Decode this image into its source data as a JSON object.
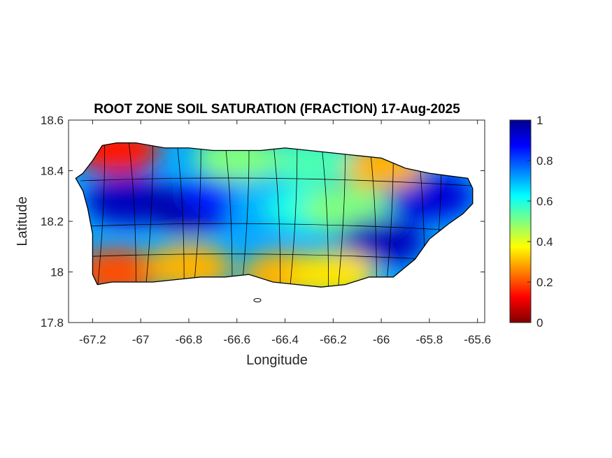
{
  "figure": {
    "title": "ROOT ZONE SOIL SATURATION (FRACTION) 17-Aug-2025",
    "xlabel": "Longitude",
    "ylabel": "Latitude"
  },
  "chart_data": {
    "type": "heatmap",
    "title": "ROOT ZONE SOIL SATURATION (FRACTION) 17-Aug-2025",
    "xlabel": "Longitude",
    "ylabel": "Latitude",
    "xlim": [
      -67.3,
      -65.57
    ],
    "ylim": [
      17.8,
      18.6
    ],
    "xticks": [
      -67.2,
      -67,
      -66.8,
      -66.6,
      -66.4,
      -66.2,
      -66,
      -65.8,
      -65.6
    ],
    "xtick_labels": [
      "-67.2",
      "-67",
      "-66.8",
      "-66.6",
      "-66.4",
      "-66.2",
      "-66",
      "-65.8",
      "-65.6"
    ],
    "yticks": [
      17.8,
      18,
      18.2,
      18.4,
      18.6
    ],
    "ytick_labels": [
      "17.8",
      "18",
      "18.2",
      "18.4",
      "18.6"
    ],
    "colorbar": {
      "colormap": "jet",
      "range": [
        0,
        1
      ],
      "ticks": [
        0,
        0.2,
        0.4,
        0.6,
        0.8,
        1
      ],
      "tick_labels": [
        "0",
        "0.2",
        "0.4",
        "0.6",
        "0.8",
        "1"
      ]
    },
    "island_outline": [
      [
        -67.27,
        18.37
      ],
      [
        -67.24,
        18.39
      ],
      [
        -67.2,
        18.44
      ],
      [
        -67.16,
        18.5
      ],
      [
        -67.1,
        18.51
      ],
      [
        -67.02,
        18.51
      ],
      [
        -66.9,
        18.49
      ],
      [
        -66.8,
        18.49
      ],
      [
        -66.7,
        18.48
      ],
      [
        -66.6,
        18.48
      ],
      [
        -66.5,
        18.48
      ],
      [
        -66.4,
        18.49
      ],
      [
        -66.3,
        18.48
      ],
      [
        -66.2,
        18.47
      ],
      [
        -66.1,
        18.46
      ],
      [
        -66.0,
        18.45
      ],
      [
        -65.9,
        18.41
      ],
      [
        -65.8,
        18.39
      ],
      [
        -65.72,
        18.38
      ],
      [
        -65.64,
        18.37
      ],
      [
        -65.62,
        18.33
      ],
      [
        -65.62,
        18.27
      ],
      [
        -65.66,
        18.23
      ],
      [
        -65.72,
        18.19
      ],
      [
        -65.8,
        18.13
      ],
      [
        -65.86,
        18.05
      ],
      [
        -65.95,
        17.98
      ],
      [
        -66.05,
        17.98
      ],
      [
        -66.15,
        17.95
      ],
      [
        -66.25,
        17.94
      ],
      [
        -66.35,
        17.95
      ],
      [
        -66.45,
        17.96
      ],
      [
        -66.55,
        17.99
      ],
      [
        -66.65,
        17.98
      ],
      [
        -66.75,
        17.98
      ],
      [
        -66.85,
        17.97
      ],
      [
        -66.95,
        17.96
      ],
      [
        -67.05,
        17.96
      ],
      [
        -67.12,
        17.96
      ],
      [
        -67.18,
        17.95
      ],
      [
        -67.2,
        17.99
      ],
      [
        -67.2,
        18.07
      ],
      [
        -67.2,
        18.15
      ],
      [
        -67.22,
        18.25
      ],
      [
        -67.24,
        18.32
      ],
      [
        -67.27,
        18.37
      ]
    ],
    "saturation_regions": [
      {
        "lon": -67.05,
        "lat": 18.28,
        "value": 0.95
      },
      {
        "lon": -66.8,
        "lat": 18.25,
        "value": 0.97
      },
      {
        "lon": -66.65,
        "lat": 18.3,
        "value": 0.85
      },
      {
        "lon": -66.45,
        "lat": 18.28,
        "value": 0.7
      },
      {
        "lon": -66.3,
        "lat": 18.25,
        "value": 0.6
      },
      {
        "lon": -66.15,
        "lat": 18.25,
        "value": 0.5
      },
      {
        "lon": -66.0,
        "lat": 18.12,
        "value": 0.95
      },
      {
        "lon": -65.8,
        "lat": 18.3,
        "value": 0.92
      },
      {
        "lon": -67.1,
        "lat": 18.48,
        "value": 0.15
      },
      {
        "lon": -67.1,
        "lat": 18.0,
        "value": 0.2
      },
      {
        "lon": -66.8,
        "lat": 18.02,
        "value": 0.3
      },
      {
        "lon": -66.4,
        "lat": 17.99,
        "value": 0.3
      },
      {
        "lon": -66.2,
        "lat": 17.99,
        "value": 0.35
      },
      {
        "lon": -66.0,
        "lat": 18.42,
        "value": 0.3
      },
      {
        "lon": -66.3,
        "lat": 18.44,
        "value": 0.55
      },
      {
        "lon": -66.6,
        "lat": 18.45,
        "value": 0.5
      }
    ]
  }
}
